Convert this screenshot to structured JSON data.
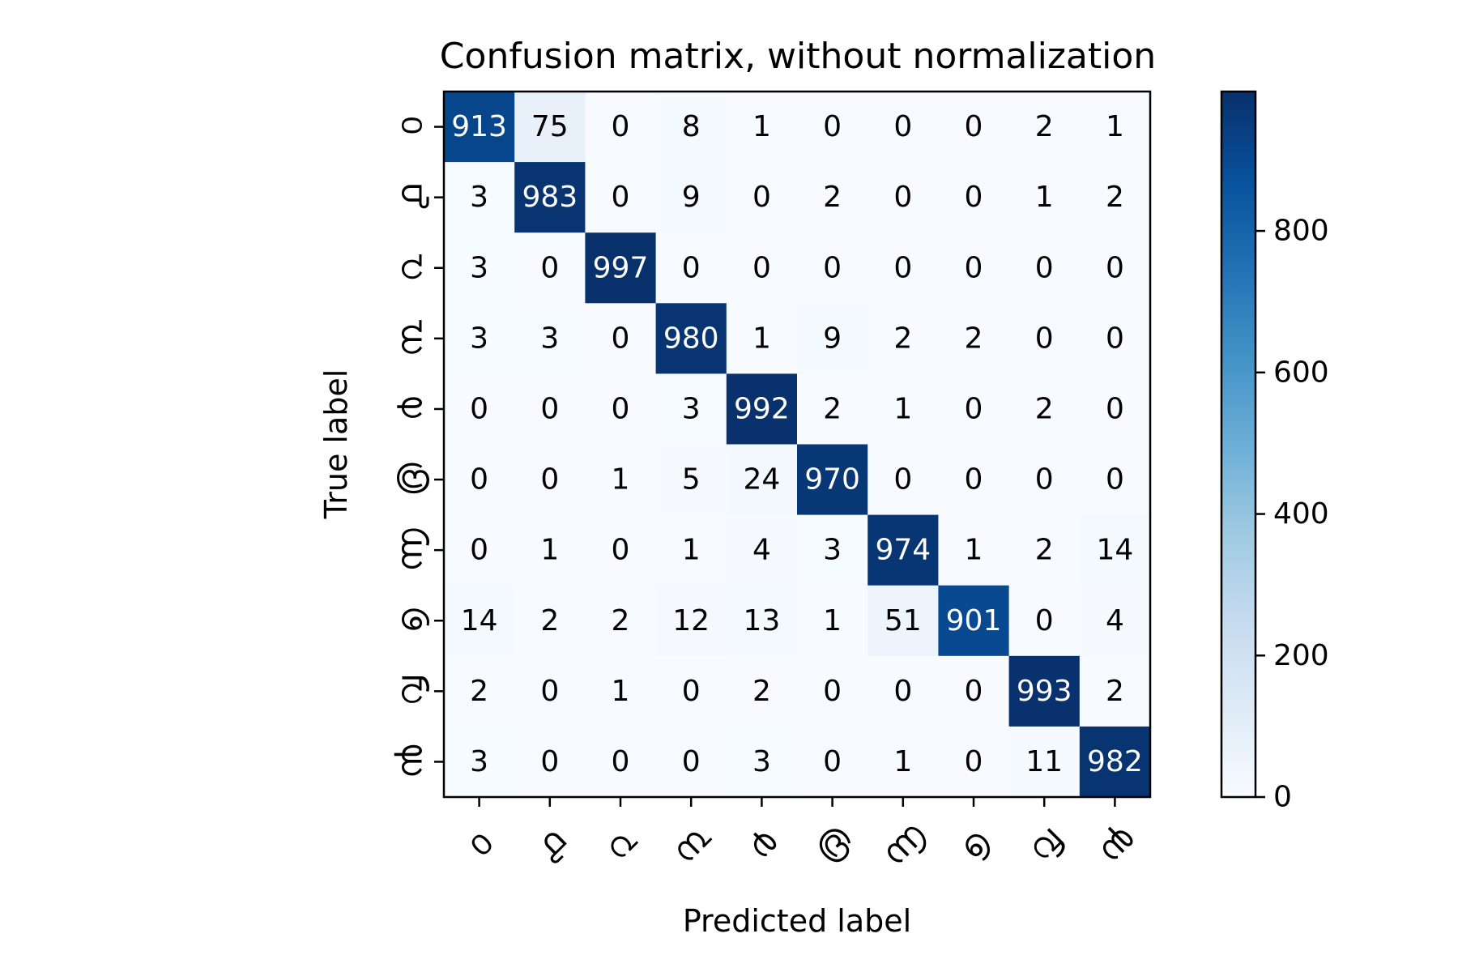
{
  "chart_data": {
    "type": "heatmap",
    "title": "Confusion matrix, without normalization",
    "xlabel": "Predicted label",
    "ylabel": "True label",
    "labels": [
      "൦",
      "൧",
      "൨",
      "൩",
      "൪",
      "൫",
      "൬",
      "൭",
      "൮",
      "൯"
    ],
    "matrix": [
      [
        913,
        75,
        0,
        8,
        1,
        0,
        0,
        0,
        2,
        1
      ],
      [
        3,
        983,
        0,
        9,
        0,
        2,
        0,
        0,
        1,
        2
      ],
      [
        3,
        0,
        997,
        0,
        0,
        0,
        0,
        0,
        0,
        0
      ],
      [
        3,
        3,
        0,
        980,
        1,
        9,
        2,
        2,
        0,
        0
      ],
      [
        0,
        0,
        0,
        3,
        992,
        2,
        1,
        0,
        2,
        0
      ],
      [
        0,
        0,
        1,
        5,
        24,
        970,
        0,
        0,
        0,
        0
      ],
      [
        0,
        1,
        0,
        1,
        4,
        3,
        974,
        1,
        2,
        14
      ],
      [
        14,
        2,
        2,
        12,
        13,
        1,
        51,
        901,
        0,
        4
      ],
      [
        2,
        0,
        1,
        0,
        2,
        0,
        0,
        0,
        993,
        2
      ],
      [
        3,
        0,
        0,
        0,
        3,
        0,
        1,
        0,
        11,
        982
      ]
    ],
    "colormap": "Blues",
    "colorbar": {
      "range": [
        0,
        997
      ],
      "ticks": [
        0,
        200,
        400,
        600,
        800
      ]
    },
    "colors": {
      "low": "#f7fbff",
      "high": "#08306b",
      "text_dark": "#000000",
      "text_light": "#ffffff"
    }
  }
}
